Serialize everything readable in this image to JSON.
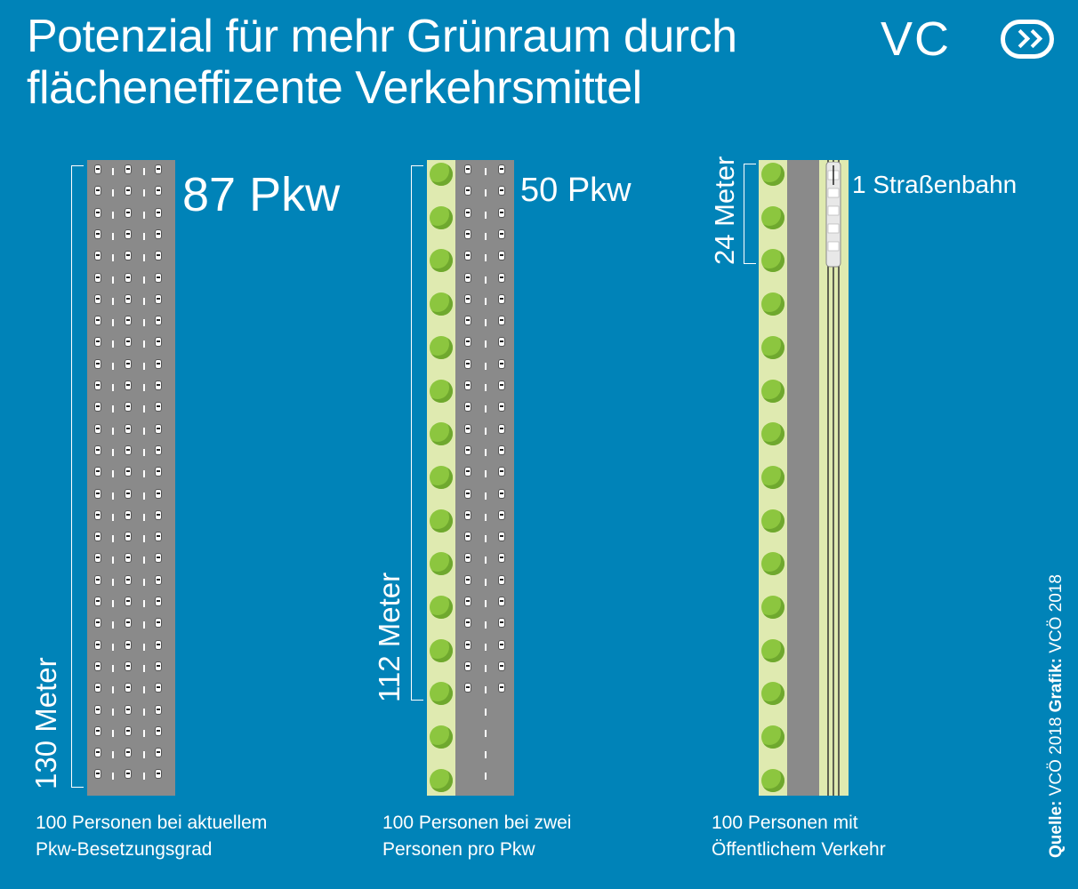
{
  "title": {
    "line1": "Potenzial für mehr Grünraum durch",
    "line2": "flächeneffizente Verkehrsmittel"
  },
  "logo": {
    "text": "VC"
  },
  "panels": [
    {
      "count_label": "87 Pkw",
      "length_label": "130 Meter",
      "caption_line1": "100 Personen bei aktuellem",
      "caption_line2": "Pkw-Besetzungsgrad"
    },
    {
      "count_label": "50 Pkw",
      "length_label": "112 Meter",
      "caption_line1": "100 Personen bei zwei",
      "caption_line2": "Personen pro Pkw"
    },
    {
      "count_label": "1 Straßenbahn",
      "length_label": "24 Meter",
      "caption_line1": "100 Personen mit",
      "caption_line2": "Öffentlichem Verkehr"
    }
  ],
  "source": {
    "label1": "Quelle:",
    "value1": " VCÖ 2018 ",
    "label2": "Grafik:",
    "value2": " VCÖ 2018"
  },
  "colors": {
    "background": "#0083b8",
    "road": "#8a8a8a",
    "green_strip": "#dfeab0",
    "tree": "#8cc63f",
    "car": "#ffffff"
  }
}
